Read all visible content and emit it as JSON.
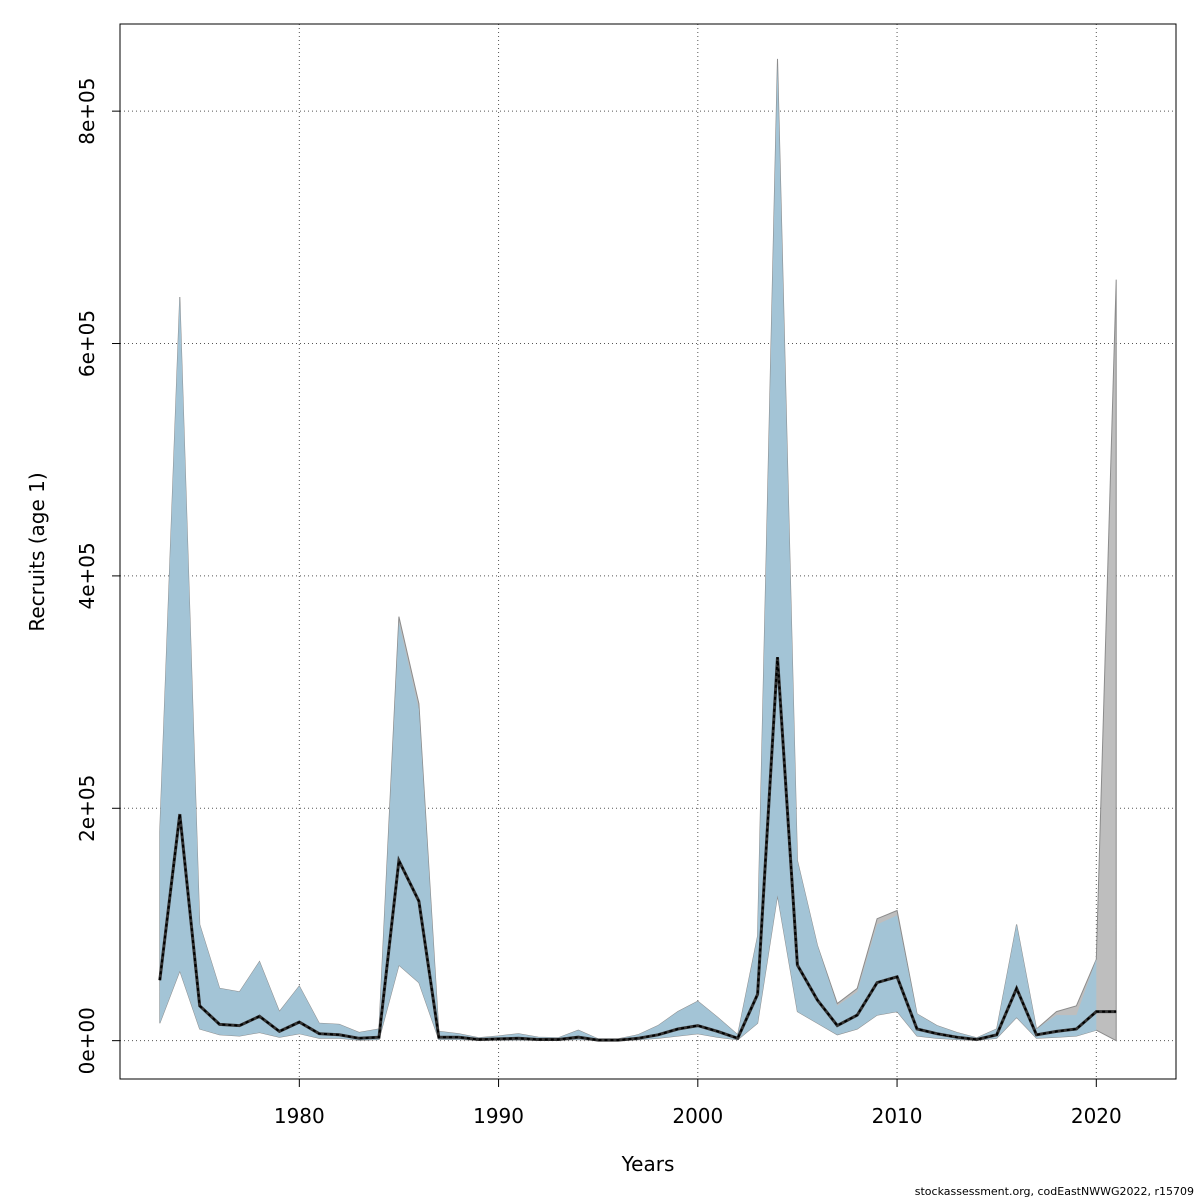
{
  "chart_data": {
    "type": "area",
    "title": "",
    "xlabel": "Years",
    "ylabel": "Recruits (age 1)",
    "xlim": [
      1971,
      2024
    ],
    "ylim": [
      -33000,
      875000
    ],
    "xticks": [
      1980,
      1990,
      2000,
      2010,
      2020
    ],
    "xtick_labels": [
      "1980",
      "1990",
      "2000",
      "2010",
      "2020"
    ],
    "yticks": [
      0,
      200000,
      400000,
      600000,
      800000
    ],
    "ytick_labels": [
      "0e+00",
      "2e+05",
      "4e+05",
      "6e+05",
      "8e+05"
    ],
    "grid": true,
    "colors": {
      "band_primary": "#a3c4d6",
      "band_secondary": "#bebebe",
      "band_edge": "#8c8c8c",
      "line": "#000000"
    },
    "years": [
      1973,
      1974,
      1975,
      1976,
      1977,
      1978,
      1979,
      1980,
      1981,
      1982,
      1983,
      1984,
      1985,
      1986,
      1987,
      1988,
      1989,
      1990,
      1991,
      1992,
      1993,
      1994,
      1995,
      1996,
      1997,
      1998,
      1999,
      2000,
      2001,
      2002,
      2003,
      2004,
      2005,
      2006,
      2007,
      2008,
      2009,
      2010,
      2011,
      2012,
      2013,
      2014,
      2015,
      2016,
      2017,
      2018,
      2019,
      2020,
      2021
    ],
    "series": [
      {
        "estimate": [
          52000,
          195000,
          30000,
          14000,
          13000,
          21000,
          8000,
          16000,
          6000,
          5000,
          2000,
          3000,
          155000,
          120000,
          3000,
          3000,
          1000,
          1500,
          2000,
          1000,
          1000,
          3000,
          500,
          500,
          2000,
          5000,
          10000,
          13000,
          8000,
          2000,
          40000,
          330000,
          65000,
          35000,
          13000,
          22000,
          50000,
          55000,
          10000,
          6000,
          3000,
          1000,
          5000,
          45000,
          5000,
          8000,
          10000,
          25000,
          25000
        ],
        "lower": [
          15000,
          60000,
          10000,
          5000,
          4000,
          7000,
          3000,
          6000,
          2000,
          2000,
          500,
          1000,
          65000,
          50000,
          1000,
          1000,
          300,
          500,
          500,
          300,
          300,
          1000,
          100,
          100,
          700,
          2000,
          4000,
          6000,
          3000,
          800,
          15000,
          125000,
          25000,
          15000,
          5000,
          10000,
          22000,
          25000,
          4000,
          2000,
          1000,
          300,
          2000,
          20000,
          2000,
          3000,
          4000,
          9000,
          null
        ],
        "upper": [
          180000,
          640000,
          100000,
          45000,
          42000,
          68000,
          25000,
          47000,
          15000,
          14000,
          7000,
          10000,
          360000,
          285000,
          8000,
          6000,
          2500,
          4000,
          6000,
          3000,
          2500,
          9000,
          1500,
          1500,
          5000,
          13000,
          25000,
          34000,
          20000,
          5000,
          90000,
          840000,
          155000,
          82000,
          30000,
          42000,
          100000,
          108000,
          23000,
          13000,
          7000,
          2500,
          10000,
          100000,
          10000,
          22000,
          22000,
          70000,
          null
        ]
      },
      {
        "estimate": [
          52000,
          195000,
          30000,
          14000,
          13000,
          21000,
          8000,
          16000,
          6000,
          5000,
          2000,
          3000,
          155000,
          120000,
          3000,
          3000,
          1000,
          1500,
          2000,
          1000,
          1000,
          3000,
          500,
          500,
          2000,
          5000,
          10000,
          13000,
          8000,
          2000,
          40000,
          330000,
          65000,
          35000,
          13000,
          22000,
          50000,
          55000,
          10000,
          6000,
          3000,
          1000,
          5000,
          45000,
          5000,
          8000,
          10000,
          25000,
          25000
        ],
        "lower": [
          15000,
          60000,
          10000,
          5000,
          4000,
          7000,
          3000,
          6000,
          2000,
          2000,
          500,
          1000,
          65000,
          50000,
          1000,
          1000,
          300,
          500,
          500,
          300,
          300,
          1000,
          100,
          100,
          700,
          2000,
          4000,
          6000,
          3000,
          800,
          15000,
          125000,
          25000,
          15000,
          5000,
          10000,
          22000,
          25000,
          4000,
          2000,
          1000,
          300,
          2000,
          20000,
          2000,
          3000,
          4000,
          9000,
          0
        ],
        "upper": [
          180000,
          640000,
          100000,
          45000,
          42000,
          68000,
          25000,
          47000,
          15000,
          14000,
          7000,
          10000,
          365000,
          290000,
          8000,
          6000,
          2500,
          4000,
          6000,
          3000,
          2500,
          9000,
          1500,
          1500,
          5000,
          13000,
          25000,
          34000,
          20000,
          5000,
          90000,
          845000,
          155000,
          82000,
          32000,
          45000,
          105000,
          112000,
          23000,
          13000,
          7000,
          2500,
          10000,
          100000,
          10000,
          25000,
          30000,
          70000,
          655000
        ]
      }
    ]
  },
  "footer": {
    "credit": "stockassessment.org, codEastNWWG2022, r15709"
  }
}
